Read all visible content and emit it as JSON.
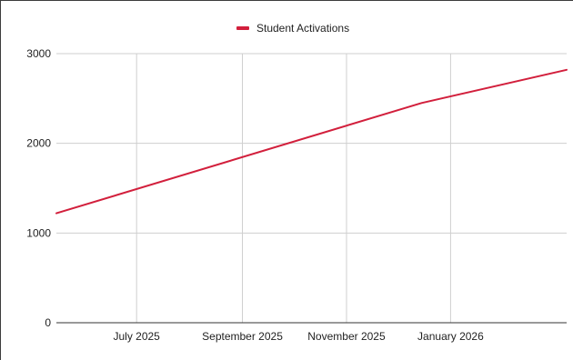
{
  "chart_data": {
    "type": "line",
    "title": "",
    "xlabel": "",
    "ylabel": "",
    "legend": {
      "position": "top-center",
      "entries": [
        "Student Activations"
      ]
    },
    "grid": true,
    "x_tick_labels": [
      "July 2025",
      "September 2025",
      "November 2025",
      "January 2026"
    ],
    "x_tick_dates": [
      "2025-07-01",
      "2025-09-01",
      "2025-11-01",
      "2026-01-01"
    ],
    "xlim": [
      "2025-05-15",
      "2026-03-10"
    ],
    "y_ticks": [
      0,
      1000,
      2000,
      3000
    ],
    "ylim": [
      0,
      3000
    ],
    "series": [
      {
        "name": "Student Activations",
        "color": "#d21f3c",
        "points": [
          {
            "x": "2025-05-15",
            "y": 1220
          },
          {
            "x": "2025-12-15",
            "y": 2450
          },
          {
            "x": "2026-03-10",
            "y": 2820
          }
        ]
      }
    ]
  }
}
